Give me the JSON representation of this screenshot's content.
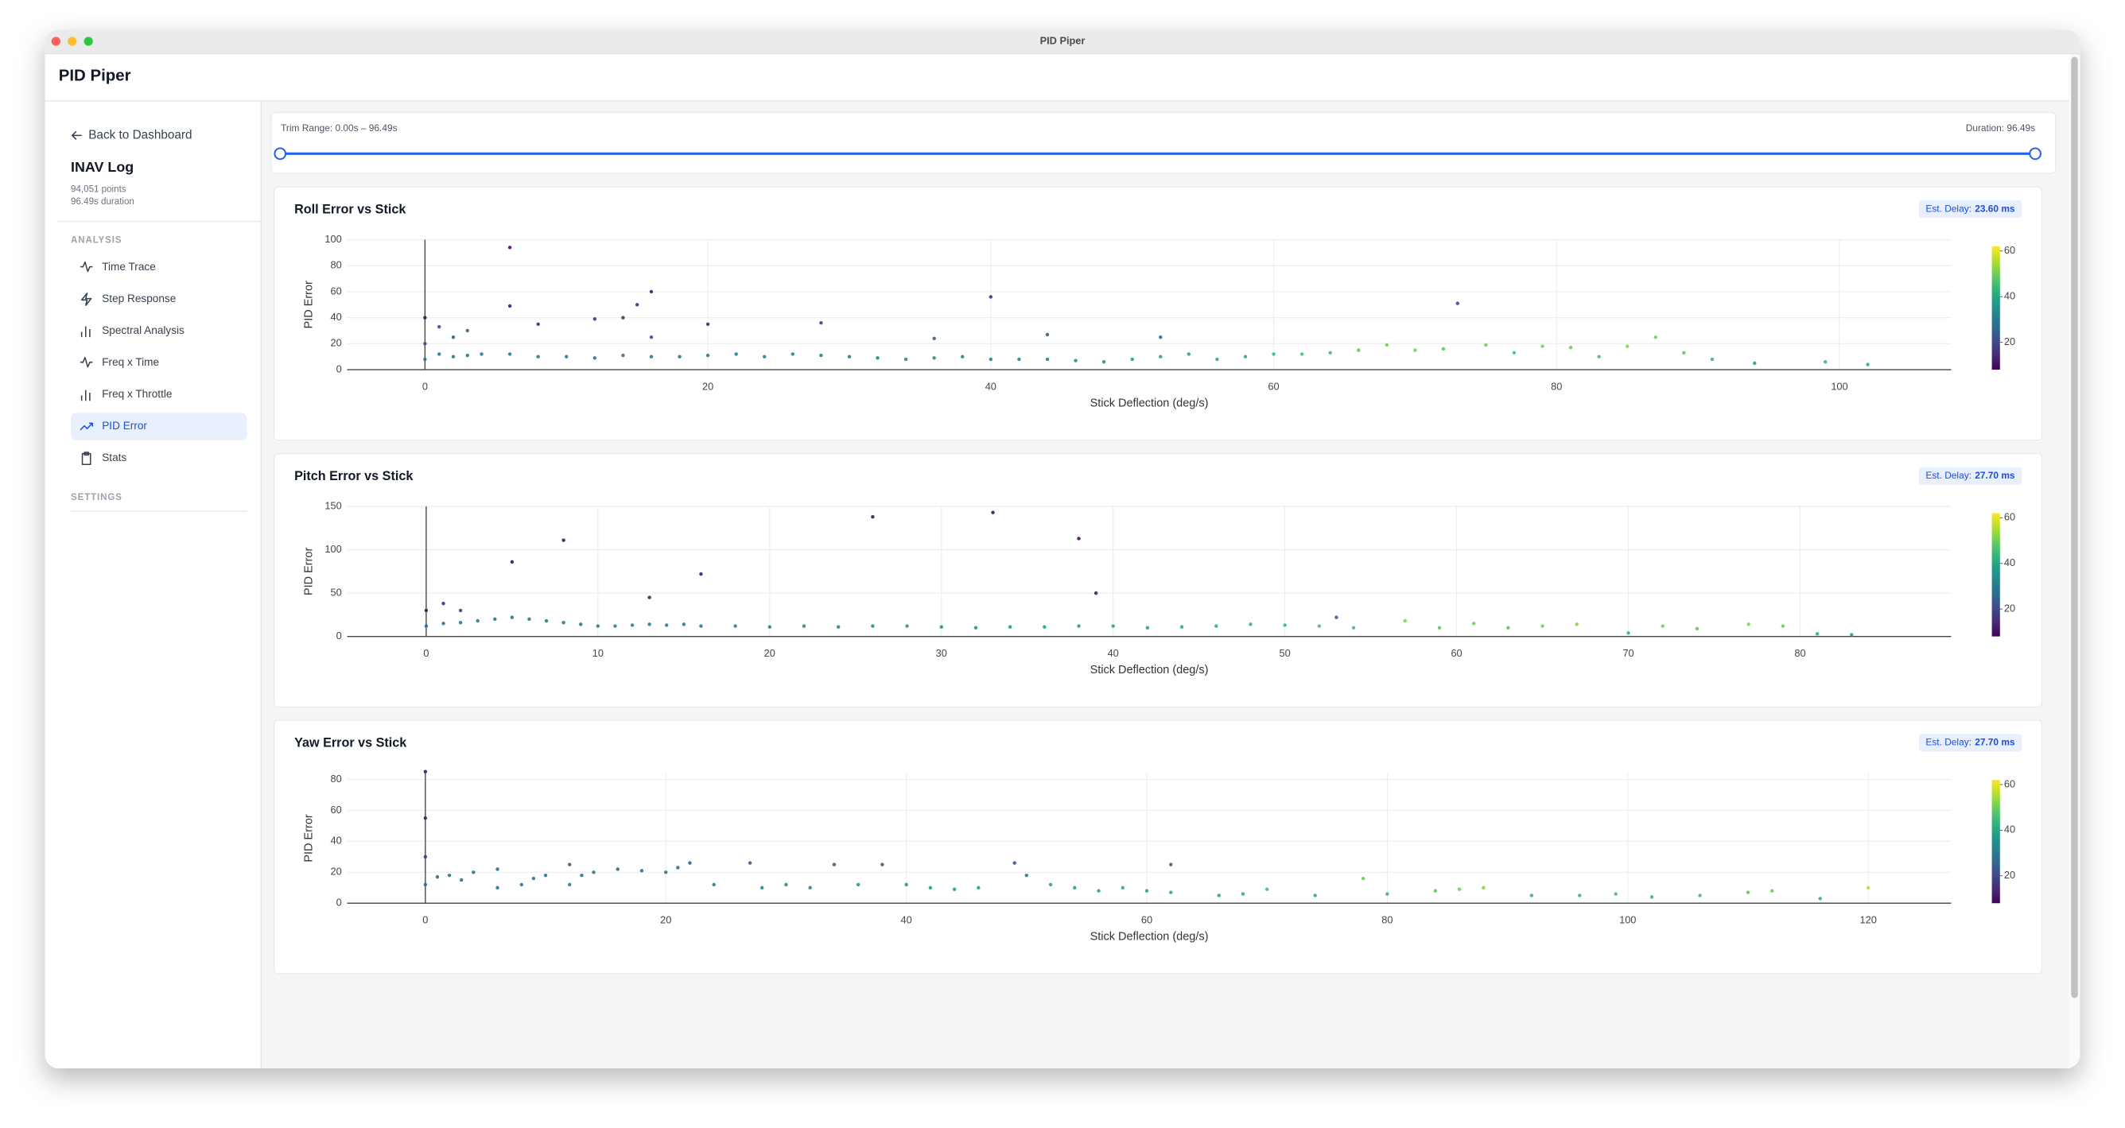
{
  "window_title": "PID Piper",
  "app_title": "PID Piper",
  "sidebar": {
    "back": "Back to Dashboard",
    "log_title": "INAV Log",
    "points": "94,051 points",
    "duration": "96.49s duration",
    "section_analysis": "ANALYSIS",
    "items": [
      "Time Trace",
      "Step Response",
      "Spectral Analysis",
      "Freq x Time",
      "Freq x Throttle",
      "PID Error",
      "Stats"
    ],
    "active_item": 5,
    "section_settings": "SETTINGS"
  },
  "trim": {
    "range_label": "Trim Range: 0.00s – 96.49s",
    "duration_label": "Duration: 96.49s"
  },
  "chart_data": [
    {
      "type": "scatter",
      "title": "Roll Error vs Stick",
      "badge_label": "Est. Delay:",
      "badge_value": "23.60 ms",
      "xlabel": "Stick Deflection (deg/s)",
      "ylabel": "PID Error",
      "x": [
        0,
        0,
        0,
        1,
        1,
        2,
        2,
        3,
        3,
        4,
        6,
        6,
        6,
        8,
        8,
        10,
        12,
        12,
        14,
        14,
        15,
        16,
        16,
        16,
        18,
        20,
        20,
        22,
        24,
        26,
        28,
        28,
        30,
        32,
        34,
        36,
        36,
        38,
        40,
        40,
        42,
        44,
        44,
        46,
        48,
        50,
        52,
        52,
        54,
        56,
        58,
        60,
        62,
        64,
        66,
        68,
        70,
        72,
        73,
        75,
        77,
        79,
        81,
        83,
        85,
        87,
        89,
        91,
        94,
        99,
        102
      ],
      "y": [
        40,
        20,
        8,
        33,
        12,
        25,
        10,
        30,
        11,
        12,
        94,
        49,
        12,
        35,
        10,
        10,
        39,
        9,
        40,
        11,
        50,
        60,
        25,
        10,
        10,
        35,
        11,
        12,
        10,
        12,
        36,
        11,
        10,
        9,
        8,
        24,
        9,
        10,
        56,
        8,
        8,
        27,
        8,
        7,
        6,
        8,
        25,
        10,
        12,
        8,
        10,
        12,
        12,
        13,
        15,
        19,
        15,
        16,
        51,
        19,
        13,
        18,
        17,
        10,
        18,
        25,
        13,
        8,
        5,
        6,
        4
      ],
      "color_values": [
        10,
        20,
        28,
        22,
        30,
        24,
        30,
        26,
        30,
        30,
        10,
        12,
        30,
        14,
        30,
        30,
        16,
        30,
        16,
        30,
        14,
        12,
        20,
        30,
        30,
        14,
        30,
        32,
        32,
        32,
        18,
        32,
        32,
        32,
        34,
        24,
        34,
        34,
        14,
        34,
        34,
        24,
        34,
        36,
        36,
        38,
        26,
        40,
        40,
        42,
        42,
        44,
        46,
        46,
        48,
        50,
        50,
        48,
        20,
        50,
        46,
        52,
        50,
        46,
        52,
        50,
        48,
        44,
        40,
        44,
        42
      ],
      "colorscale": "Viridis",
      "clim": [
        8,
        62
      ],
      "colorbar_ticks": [
        20,
        40,
        60
      ],
      "xlim": [
        -5.5,
        107.9
      ],
      "ylim": [
        0,
        100
      ],
      "xticks": [
        0,
        20,
        40,
        60,
        80,
        100
      ],
      "yticks": [
        0,
        20,
        40,
        60,
        80,
        100
      ],
      "grid": true
    },
    {
      "type": "scatter",
      "title": "Pitch Error vs Stick",
      "badge_label": "Est. Delay:",
      "badge_value": "27.70 ms",
      "xlabel": "Stick Deflection (deg/s)",
      "ylabel": "PID Error",
      "x": [
        0,
        0,
        1,
        1,
        2,
        2,
        3,
        4,
        5,
        5,
        6,
        7,
        8,
        8,
        9,
        10,
        11,
        12,
        13,
        13,
        14,
        15,
        16,
        16,
        18,
        20,
        22,
        24,
        26,
        26,
        28,
        30,
        32,
        33,
        34,
        36,
        38,
        38,
        39,
        40,
        42,
        44,
        46,
        48,
        50,
        52,
        53,
        54,
        57,
        59,
        61,
        63,
        65,
        67,
        70,
        72,
        74,
        77,
        79,
        81,
        83
      ],
      "y": [
        30,
        12,
        38,
        15,
        30,
        16,
        18,
        20,
        86,
        22,
        20,
        18,
        111,
        16,
        14,
        12,
        12,
        13,
        45,
        14,
        13,
        14,
        72,
        12,
        12,
        11,
        12,
        11,
        138,
        12,
        12,
        11,
        10,
        143,
        11,
        11,
        113,
        12,
        50,
        12,
        10,
        11,
        12,
        14,
        13,
        12,
        22,
        10,
        18,
        10,
        15,
        10,
        12,
        14,
        4,
        12,
        9,
        14,
        12,
        3,
        2
      ],
      "color_values": [
        10,
        26,
        14,
        28,
        18,
        30,
        30,
        30,
        10,
        28,
        30,
        30,
        10,
        30,
        30,
        30,
        32,
        32,
        12,
        32,
        32,
        32,
        12,
        32,
        32,
        32,
        34,
        34,
        10,
        34,
        36,
        36,
        36,
        10,
        38,
        38,
        10,
        38,
        12,
        40,
        40,
        42,
        42,
        44,
        44,
        46,
        24,
        46,
        52,
        48,
        50,
        48,
        50,
        52,
        44,
        50,
        48,
        52,
        50,
        42,
        40
      ],
      "colorscale": "Viridis",
      "clim": [
        8,
        62
      ],
      "colorbar_ticks": [
        20,
        40,
        60
      ],
      "xlim": [
        -4.6,
        88.8
      ],
      "ylim": [
        0,
        150
      ],
      "xticks": [
        0,
        10,
        20,
        30,
        40,
        50,
        60,
        70,
        80
      ],
      "yticks": [
        0,
        50,
        100,
        150
      ],
      "grid": true
    },
    {
      "type": "scatter",
      "title": "Yaw Error vs Stick",
      "badge_label": "Est. Delay:",
      "badge_value": "27.70 ms",
      "xlabel": "Stick Deflection (deg/s)",
      "ylabel": "PID Error",
      "x": [
        0,
        0,
        0,
        0,
        1,
        2,
        3,
        4,
        6,
        6,
        8,
        9,
        10,
        12,
        12,
        13,
        14,
        16,
        18,
        20,
        21,
        22,
        24,
        27,
        28,
        30,
        32,
        34,
        36,
        38,
        40,
        42,
        44,
        46,
        49,
        50,
        52,
        54,
        56,
        58,
        60,
        62,
        62,
        66,
        68,
        70,
        74,
        78,
        80,
        84,
        86,
        88,
        92,
        96,
        99,
        102,
        106,
        110,
        112,
        116,
        120
      ],
      "y": [
        85,
        55,
        30,
        12,
        17,
        18,
        15,
        20,
        22,
        10,
        12,
        16,
        18,
        25,
        12,
        18,
        20,
        22,
        21,
        20,
        23,
        26,
        12,
        26,
        10,
        12,
        10,
        25,
        12,
        25,
        12,
        10,
        9,
        10,
        26,
        18,
        12,
        10,
        8,
        10,
        8,
        25,
        7,
        5,
        6,
        9,
        5,
        16,
        6,
        8,
        9,
        10,
        5,
        5,
        6,
        4,
        5,
        7,
        8,
        3,
        10
      ],
      "color_values": [
        10,
        12,
        16,
        26,
        28,
        28,
        30,
        28,
        26,
        30,
        30,
        30,
        30,
        24,
        30,
        30,
        28,
        26,
        28,
        28,
        26,
        24,
        32,
        24,
        34,
        34,
        34,
        24,
        36,
        24,
        36,
        38,
        38,
        38,
        22,
        30,
        40,
        40,
        40,
        42,
        42,
        24,
        42,
        40,
        42,
        46,
        42,
        50,
        44,
        48,
        50,
        52,
        44,
        44,
        46,
        44,
        46,
        48,
        50,
        44,
        56
      ],
      "colorscale": "Viridis",
      "clim": [
        8,
        62
      ],
      "colorbar_ticks": [
        20,
        40,
        60
      ],
      "xlim": [
        -6.5,
        126.9
      ],
      "ylim": [
        0,
        84
      ],
      "xticks": [
        0,
        20,
        40,
        60,
        80,
        100,
        120
      ],
      "yticks": [
        0,
        20,
        40,
        60,
        80
      ],
      "grid": true
    }
  ]
}
